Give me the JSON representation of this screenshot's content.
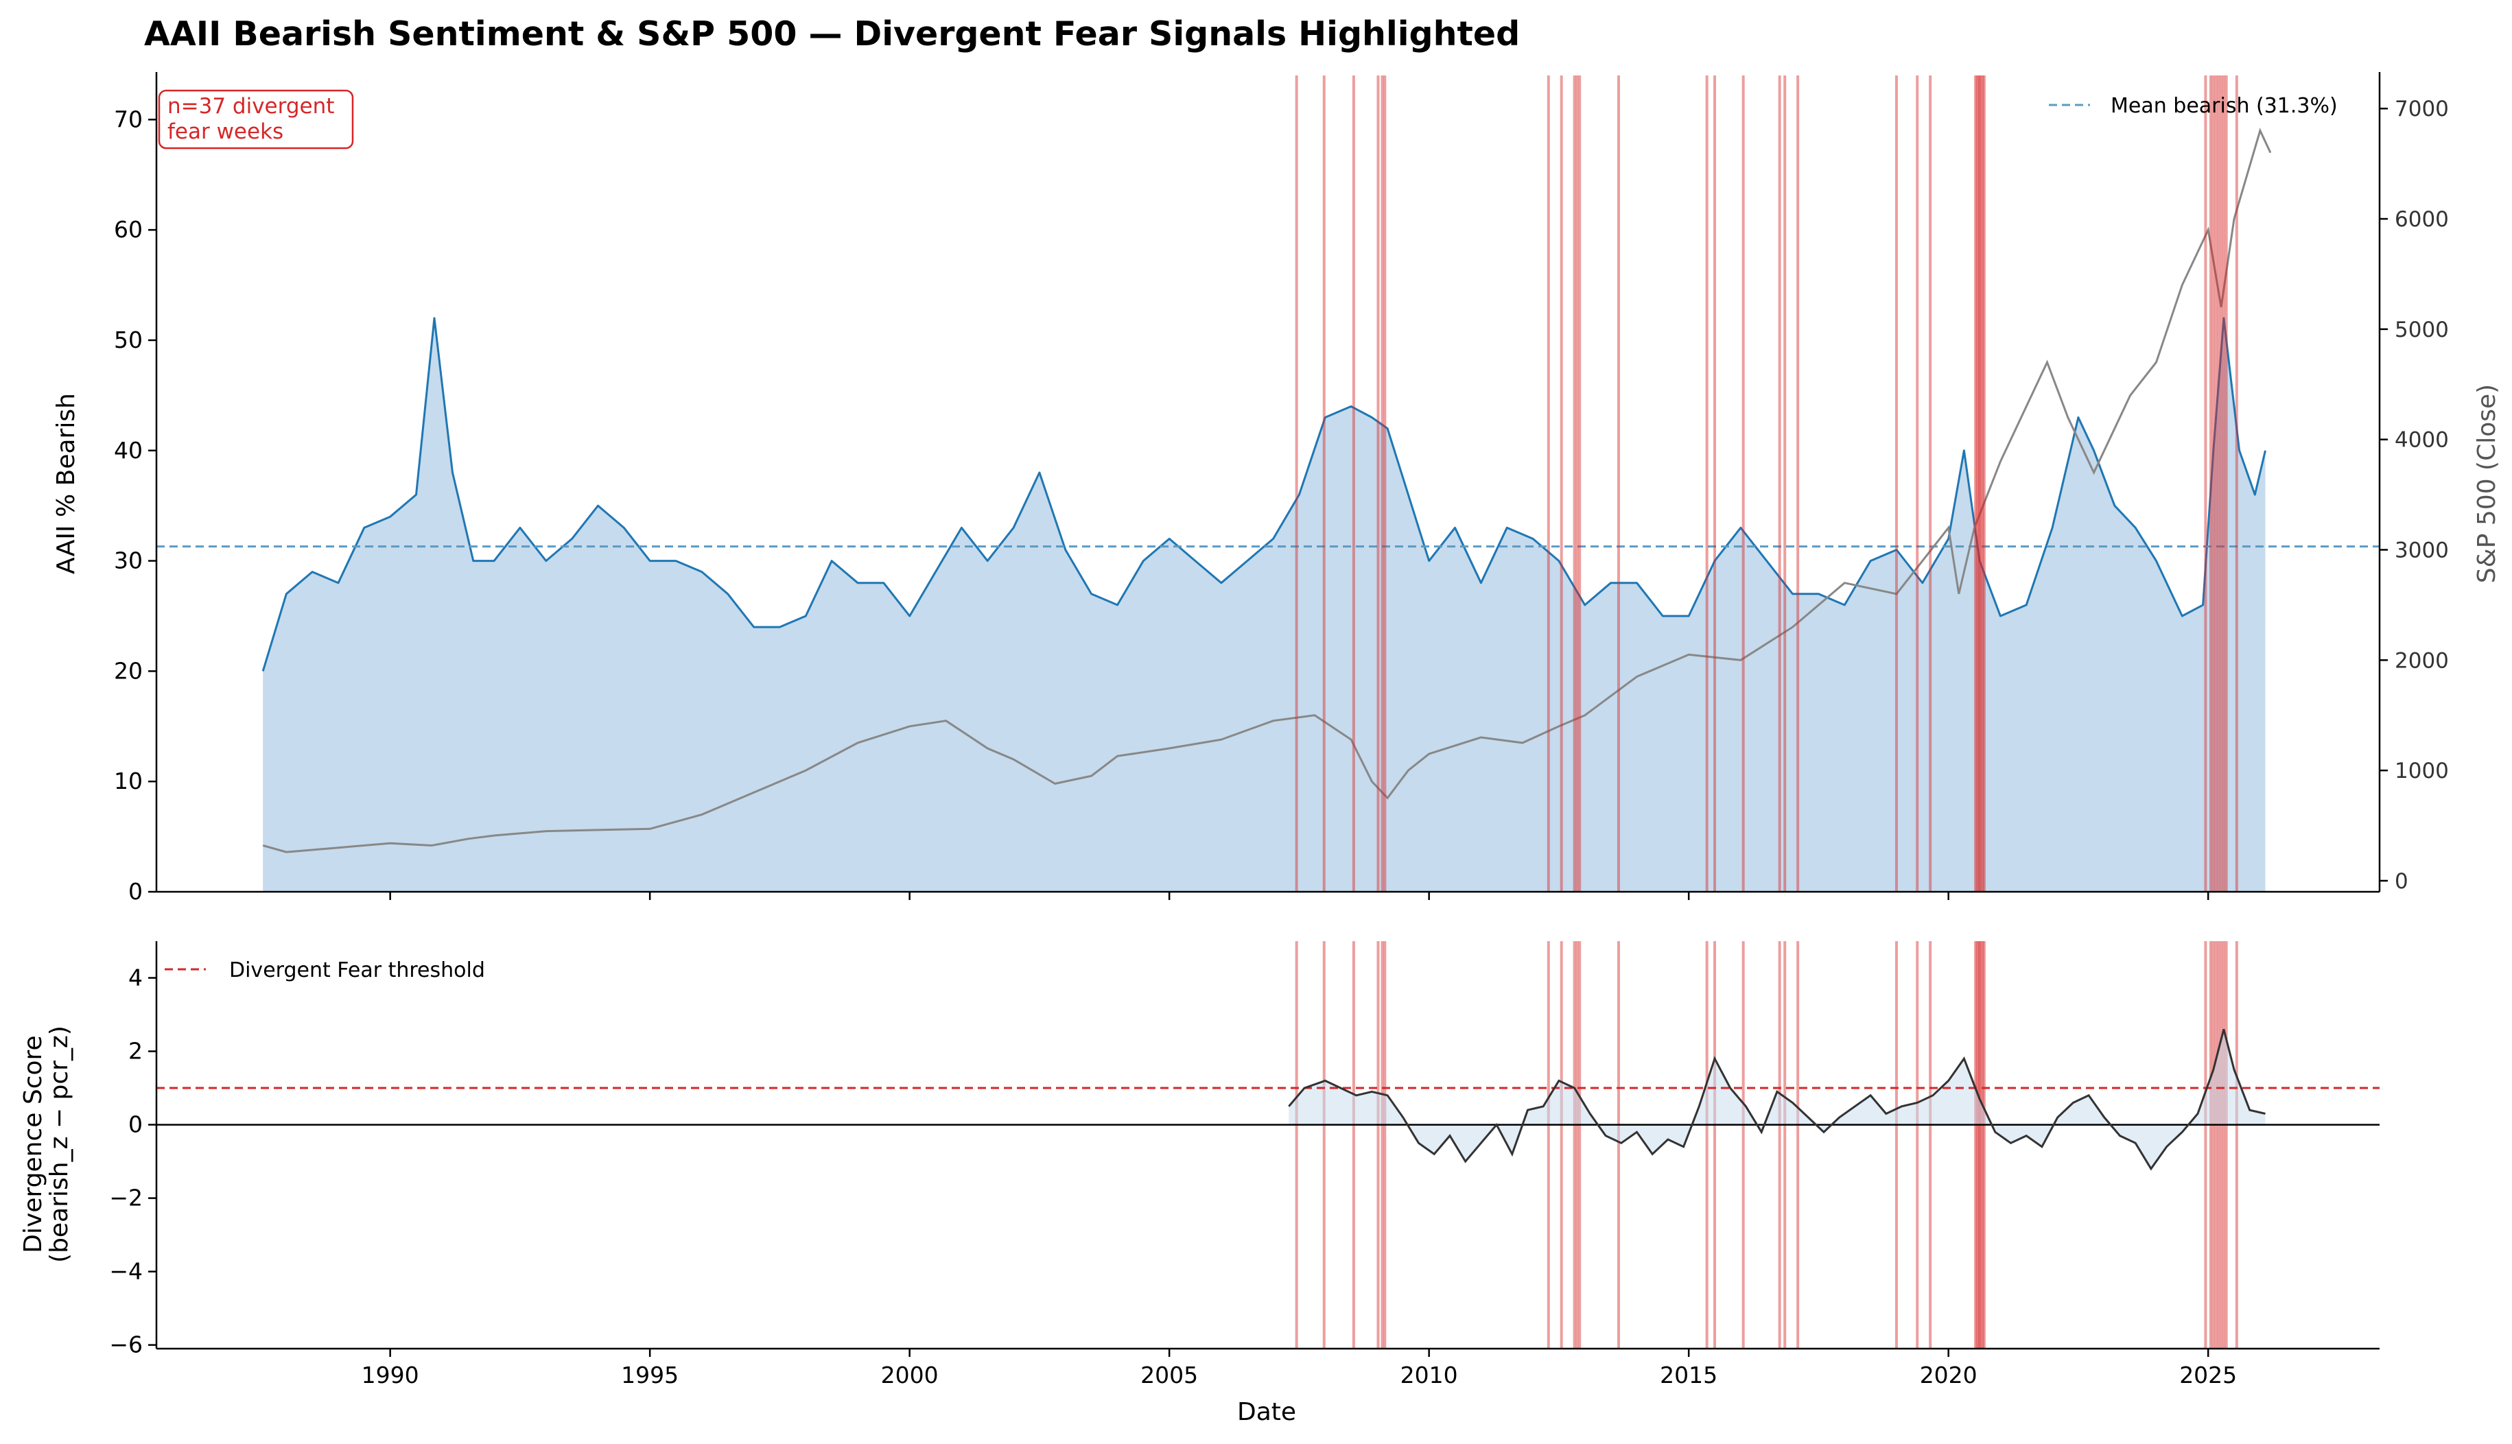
{
  "figure": {
    "title": "AAII Bearish Sentiment & S&P 500 — Divergent Fear Signals Highlighted"
  },
  "chart_data": [
    {
      "panel": "top",
      "type": "area",
      "xlabel": "",
      "ylabel": "AAII % Bearish",
      "ylabel_right": "S&P 500 (Close)",
      "xlim": [
        1985.5,
        2028.3
      ],
      "ylim": [
        0,
        74
      ],
      "ylim_right": [
        -100,
        7300
      ],
      "yticks": [
        0,
        10,
        20,
        30,
        40,
        50,
        60,
        70
      ],
      "yticks_right": [
        0,
        1000,
        2000,
        3000,
        4000,
        5000,
        6000,
        7000
      ],
      "mean_line": {
        "label": "Mean bearish (31.3%)",
        "value": 31.3,
        "color": "#5b9bc4"
      },
      "annotation": "n=37 divergent\nfear weeks",
      "legend_position": "upper right",
      "series": [
        {
          "name": "",
          "color": "#1f77b4",
          "fill": "#c6dbed",
          "x": [
            1987.55,
            1988.0,
            1988.5,
            1989.0,
            1989.5,
            1990.0,
            1990.5,
            1990.85,
            1991.2,
            1991.6,
            1992.0,
            1992.5,
            1993.0,
            1993.5,
            1994.0,
            1994.5,
            1995.0,
            1995.5,
            1996.0,
            1996.5,
            1997.0,
            1997.5,
            1998.0,
            1998.5,
            1999.0,
            1999.5,
            2000.0,
            2000.5,
            2001.0,
            2001.5,
            2002.0,
            2002.5,
            2003.0,
            2003.5,
            2004.0,
            2004.5,
            2005.0,
            2005.5,
            2006.0,
            2006.5,
            2007.0,
            2007.5,
            2008.0,
            2008.5,
            2008.9,
            2009.2,
            2009.6,
            2010.0,
            2010.5,
            2011.0,
            2011.5,
            2012.0,
            2012.5,
            2013.0,
            2013.5,
            2014.0,
            2014.5,
            2015.0,
            2015.5,
            2016.0,
            2016.5,
            2017.0,
            2017.5,
            2018.0,
            2018.5,
            2019.0,
            2019.5,
            2020.0,
            2020.3,
            2020.6,
            2021.0,
            2021.5,
            2022.0,
            2022.5,
            2022.8,
            2023.2,
            2023.6,
            2024.0,
            2024.5,
            2024.9,
            2025.1,
            2025.3,
            2025.6,
            2025.9,
            2026.1
          ],
          "values": [
            20,
            27,
            29,
            28,
            33,
            34,
            36,
            52,
            38,
            30,
            30,
            33,
            30,
            32,
            35,
            33,
            30,
            30,
            29,
            27,
            24,
            24,
            25,
            30,
            28,
            28,
            25,
            29,
            33,
            30,
            33,
            38,
            31,
            27,
            26,
            30,
            32,
            30,
            28,
            30,
            32,
            36,
            43,
            44,
            43,
            42,
            36,
            30,
            33,
            28,
            33,
            32,
            30,
            26,
            28,
            28,
            25,
            25,
            30,
            33,
            30,
            27,
            27,
            26,
            30,
            31,
            28,
            32,
            40,
            30,
            25,
            26,
            33,
            43,
            40,
            35,
            33,
            30,
            25,
            26,
            40,
            52,
            40,
            36,
            40
          ]
        },
        {
          "name": "",
          "color": "#888888",
          "axis": "right",
          "x": [
            1987.55,
            1988.0,
            1989.0,
            1990.0,
            1990.8,
            1991.5,
            1992.0,
            1993.0,
            1994.0,
            1995.0,
            1996.0,
            1997.0,
            1998.0,
            1999.0,
            2000.0,
            2000.7,
            2001.5,
            2002.0,
            2002.8,
            2003.5,
            2004.0,
            2005.0,
            2006.0,
            2007.0,
            2007.8,
            2008.5,
            2008.9,
            2009.2,
            2009.6,
            2010.0,
            2011.0,
            2011.8,
            2012.5,
            2013.0,
            2014.0,
            2015.0,
            2016.0,
            2017.0,
            2018.0,
            2019.0,
            2020.0,
            2020.2,
            2020.5,
            2021.0,
            2021.9,
            2022.3,
            2022.8,
            2023.5,
            2024.0,
            2024.5,
            2025.0,
            2025.25,
            2025.5,
            2026.0,
            2026.2
          ],
          "values": [
            320,
            260,
            300,
            340,
            320,
            380,
            410,
            450,
            460,
            470,
            600,
            800,
            1000,
            1250,
            1400,
            1450,
            1200,
            1100,
            880,
            950,
            1130,
            1200,
            1280,
            1450,
            1500,
            1280,
            900,
            750,
            1000,
            1150,
            1300,
            1250,
            1400,
            1500,
            1850,
            2050,
            2000,
            2300,
            2700,
            2600,
            3200,
            2600,
            3200,
            3800,
            4700,
            4200,
            3700,
            4400,
            4700,
            5400,
            5900,
            5200,
            6000,
            6800,
            6600
          ]
        }
      ]
    },
    {
      "panel": "bottom",
      "type": "line",
      "xlabel": "Date",
      "ylabel": "Divergence Score\n(bearish_z − pcr_z)",
      "xlim": [
        1985.5,
        2028.3
      ],
      "ylim": [
        -6.1,
        5.0
      ],
      "xticks": [
        1990,
        1995,
        2000,
        2005,
        2010,
        2015,
        2020,
        2025
      ],
      "yticks": [
        -6,
        -4,
        -2,
        0,
        2,
        4
      ],
      "threshold": {
        "label": "Divergent Fear threshold",
        "value": 1.0,
        "color": "#d62728"
      },
      "zero_line": 0,
      "legend_position": "upper left",
      "series": [
        {
          "name": "",
          "color": "#333333",
          "x": [
            2007.3,
            2007.6,
            2008.0,
            2008.3,
            2008.6,
            2008.9,
            2009.2,
            2009.5,
            2009.8,
            2010.1,
            2010.4,
            2010.7,
            2011.0,
            2011.3,
            2011.6,
            2011.9,
            2012.2,
            2012.5,
            2012.8,
            2013.1,
            2013.4,
            2013.7,
            2014.0,
            2014.3,
            2014.6,
            2014.9,
            2015.2,
            2015.5,
            2015.8,
            2016.1,
            2016.4,
            2016.7,
            2017.0,
            2017.3,
            2017.6,
            2017.9,
            2018.2,
            2018.5,
            2018.8,
            2019.1,
            2019.4,
            2019.7,
            2020.0,
            2020.3,
            2020.6,
            2020.9,
            2021.2,
            2021.5,
            2021.8,
            2022.1,
            2022.4,
            2022.7,
            2023.0,
            2023.3,
            2023.6,
            2023.9,
            2024.2,
            2024.5,
            2024.8,
            2025.1,
            2025.3,
            2025.5,
            2025.8,
            2026.1
          ],
          "values": [
            0.5,
            1.0,
            1.2,
            1.0,
            0.8,
            0.9,
            0.8,
            0.2,
            -0.5,
            -0.8,
            -0.3,
            -1.0,
            -0.5,
            0.0,
            -0.8,
            0.4,
            0.5,
            1.2,
            1.0,
            0.3,
            -0.3,
            -0.5,
            -0.2,
            -0.8,
            -0.4,
            -0.6,
            0.5,
            1.8,
            1.0,
            0.5,
            -0.2,
            0.9,
            0.6,
            0.2,
            -0.2,
            0.2,
            0.5,
            0.8,
            0.3,
            0.5,
            0.6,
            0.8,
            1.2,
            1.8,
            0.7,
            -0.2,
            -0.5,
            -0.3,
            -0.6,
            0.2,
            0.6,
            0.8,
            0.2,
            -0.3,
            -0.5,
            -1.2,
            -0.6,
            -0.2,
            0.3,
            1.5,
            2.6,
            1.5,
            0.4,
            0.3
          ]
        }
      ]
    }
  ],
  "divergent_fear_weeks": [
    2007.45,
    2007.98,
    2008.55,
    2009.02,
    2009.1,
    2009.15,
    2012.3,
    2012.55,
    2012.8,
    2012.85,
    2012.9,
    2013.65,
    2015.35,
    2015.5,
    2016.05,
    2016.75,
    2016.85,
    2017.1,
    2019.0,
    2019.4,
    2019.65,
    2020.52,
    2020.55,
    2020.58,
    2020.6,
    2020.63,
    2020.66,
    2020.69,
    2024.95,
    2025.05,
    2025.1,
    2025.15,
    2025.2,
    2025.25,
    2025.3,
    2025.35,
    2025.55
  ],
  "colors": {
    "bearish": "#1f77b4",
    "fill": "#c6dbed",
    "spx": "#888888",
    "signal": "#d62728",
    "mean": "#5b9bc4"
  }
}
